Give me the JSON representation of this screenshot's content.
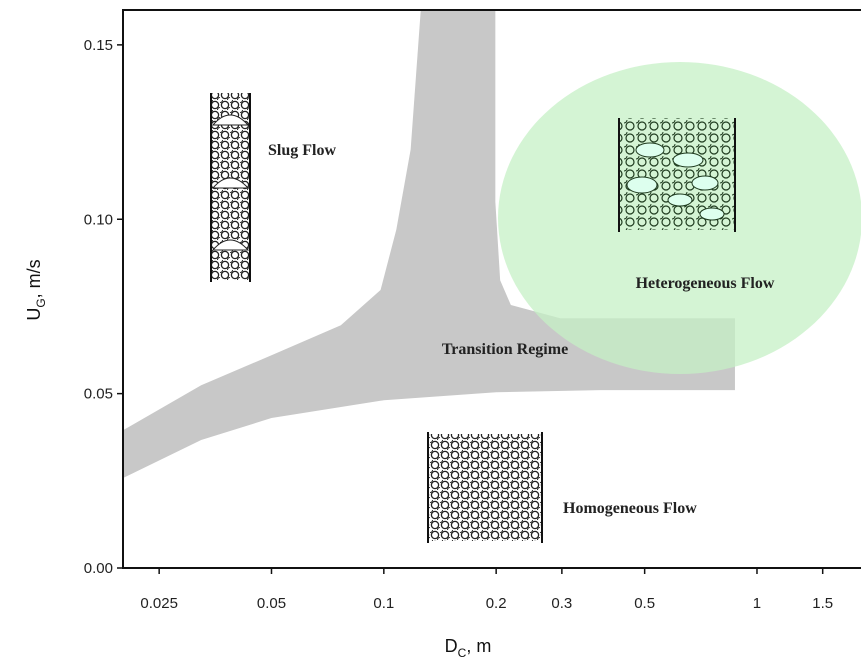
{
  "chart_data": {
    "type": "area",
    "xlabel": {
      "main": "D",
      "sub": "C",
      "rest": ", m"
    },
    "ylabel": {
      "main": "U",
      "sub": "G",
      "rest": ", m/s"
    },
    "xscale": "log",
    "xlim": [
      0.02,
      1.9
    ],
    "ylim": [
      0,
      0.16
    ],
    "xticks": [
      0.025,
      0.05,
      0.1,
      0.2,
      0.3,
      0.5,
      1,
      1.5
    ],
    "yticks": [
      {
        "value": 0,
        "label": "0.00"
      },
      {
        "value": 0.05,
        "label": "0.05"
      },
      {
        "value": 0.1,
        "label": "0.10"
      },
      {
        "value": 0.15,
        "label": "0.15"
      }
    ],
    "series": [
      {
        "name": "Transition Regime",
        "color": "#c8c8c8",
        "x": [
          0.02,
          0.0324,
          0.05,
          0.1,
          0.2,
          0.38,
          0.873,
          0.873,
          0.297,
          0.219,
          0.205,
          0.199,
          0.199,
          0.1256,
          0.118,
          0.108,
          0.098,
          0.0767,
          0.05,
          0.0324,
          0.02
        ],
        "values": [
          0.0258,
          0.0367,
          0.043,
          0.0481,
          0.0504,
          0.051,
          0.051,
          0.0716,
          0.0716,
          0.0754,
          0.0825,
          0.105,
          0.16,
          0.16,
          0.12,
          0.097,
          0.0797,
          0.0696,
          0.061,
          0.0524,
          0.0395
        ]
      }
    ],
    "annotations": [
      "Slug Flow",
      "Heterogeneous Flow",
      "Transition Regime",
      "Homogeneous Flow"
    ]
  }
}
